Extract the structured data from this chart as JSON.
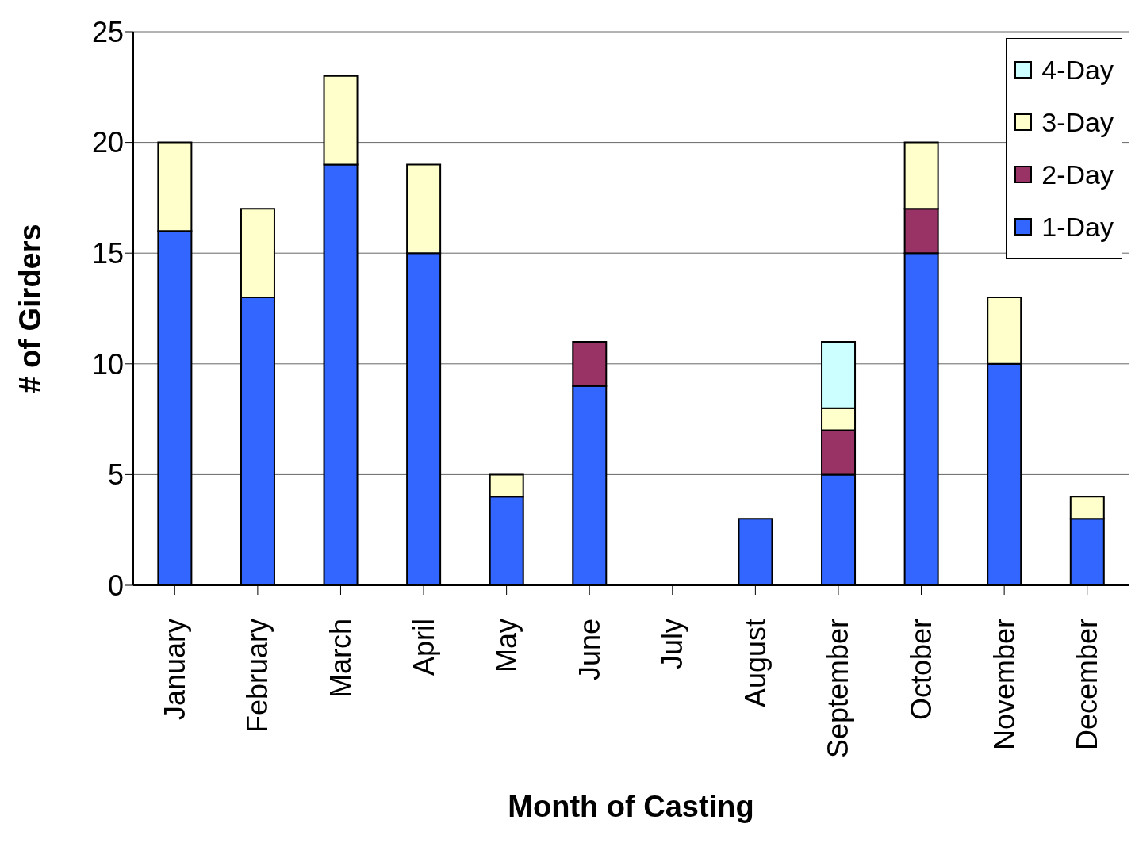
{
  "chart_data": {
    "type": "bar",
    "stacked": true,
    "xlabel": "Month of Casting",
    "ylabel": "# of Girders",
    "categories": [
      "January",
      "February",
      "March",
      "April",
      "May",
      "June",
      "July",
      "August",
      "September",
      "October",
      "November",
      "December"
    ],
    "series": [
      {
        "name": "1-Day",
        "color": "#3366ff",
        "values": [
          16,
          13,
          19,
          15,
          4,
          9,
          0,
          3,
          5,
          15,
          10,
          3
        ]
      },
      {
        "name": "2-Day",
        "color": "#993366",
        "values": [
          0,
          0,
          0,
          0,
          0,
          2,
          0,
          0,
          2,
          2,
          0,
          0
        ]
      },
      {
        "name": "3-Day",
        "color": "#ffffcc",
        "values": [
          4,
          4,
          4,
          4,
          1,
          0,
          0,
          0,
          1,
          3,
          3,
          1
        ]
      },
      {
        "name": "4-Day",
        "color": "#ccffff",
        "values": [
          0,
          0,
          0,
          0,
          0,
          0,
          0,
          0,
          3,
          0,
          0,
          0
        ]
      }
    ],
    "ylim": [
      0,
      25
    ],
    "yticks": [
      0,
      5,
      10,
      15,
      20,
      25
    ],
    "grid": "y",
    "legend": "top right"
  }
}
